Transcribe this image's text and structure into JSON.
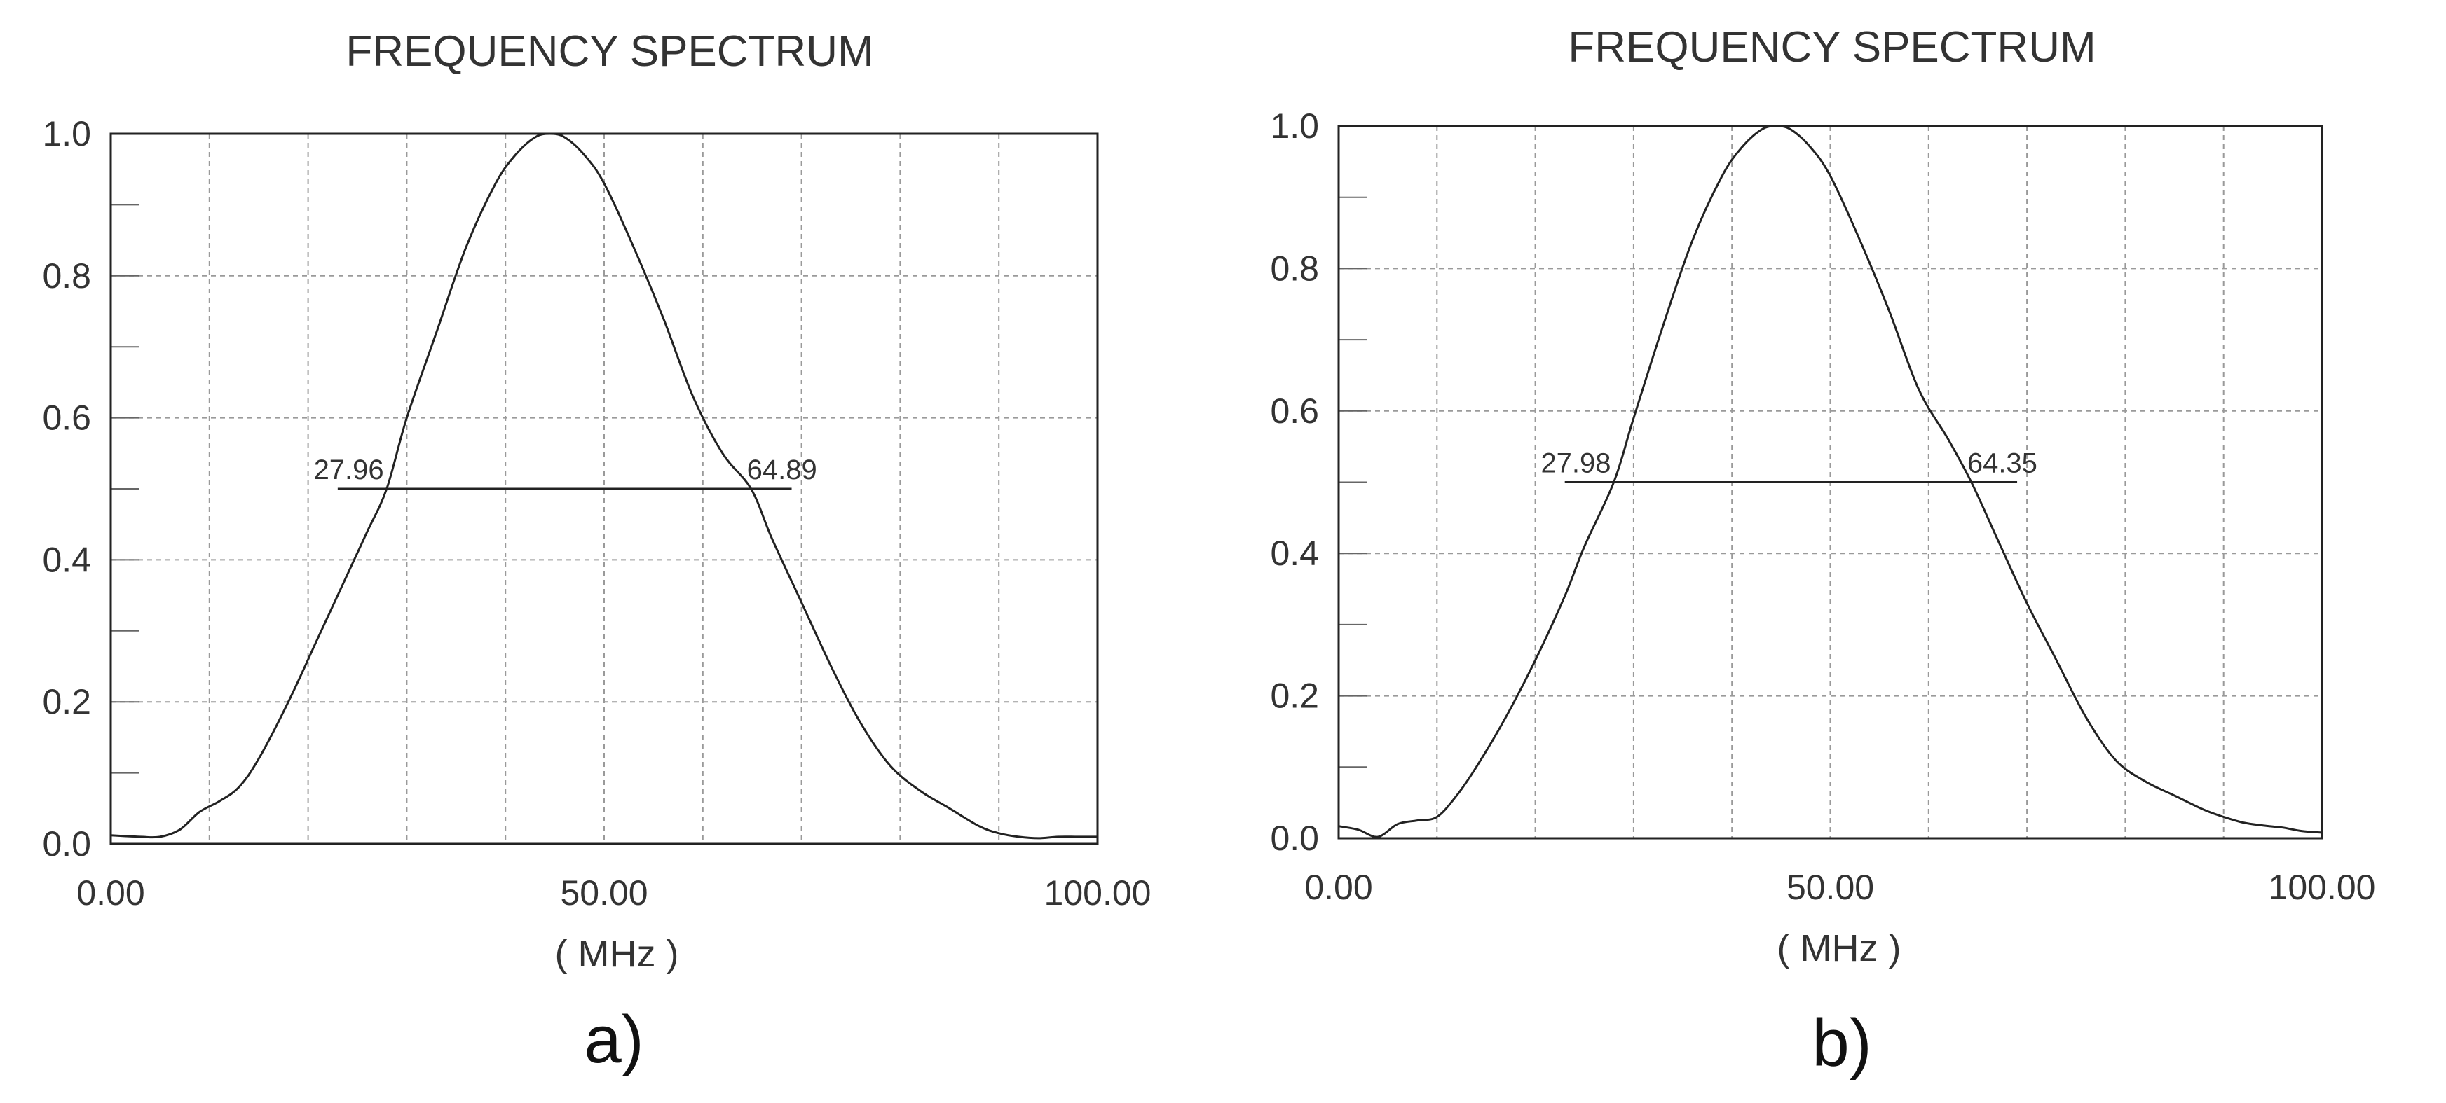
{
  "chart_data": [
    {
      "type": "line",
      "title": "FREQUENCY SPECTRUM",
      "xlabel": "( MHz )",
      "ylabel": "",
      "xlim": [
        0,
        100
      ],
      "ylim": [
        0,
        1
      ],
      "x_ticks": [
        "0.00",
        "50.00",
        "100.00"
      ],
      "y_ticks": [
        "0.0",
        "0.2",
        "0.4",
        "0.6",
        "0.8",
        "1.0"
      ],
      "grid": true,
      "panel_label": "a)",
      "series": [
        {
          "x": [
            0,
            3,
            5,
            7,
            9,
            11,
            13,
            15,
            18,
            21,
            24,
            26,
            27.96,
            30,
            33,
            36,
            39,
            41,
            43,
            44.5,
            46,
            48,
            50,
            53,
            56,
            59,
            62,
            64.89,
            67,
            70,
            73,
            76,
            79,
            82,
            85,
            88,
            90,
            92,
            94,
            96,
            98,
            100
          ],
          "values": [
            0.012,
            0.01,
            0.01,
            0.02,
            0.045,
            0.06,
            0.08,
            0.12,
            0.2,
            0.29,
            0.38,
            0.44,
            0.5,
            0.6,
            0.72,
            0.84,
            0.93,
            0.97,
            0.995,
            1.0,
            0.995,
            0.97,
            0.93,
            0.84,
            0.74,
            0.63,
            0.55,
            0.5,
            0.43,
            0.34,
            0.25,
            0.17,
            0.11,
            0.075,
            0.05,
            0.025,
            0.015,
            0.01,
            0.008,
            0.01,
            0.01,
            0.01
          ]
        }
      ],
      "annotations": {
        "level": 0.5,
        "span": [
          23,
          69
        ],
        "left_label": "27.96",
        "left_value": 27.96,
        "right_label": "64.89",
        "right_value": 64.89
      }
    },
    {
      "type": "line",
      "title": "FREQUENCY SPECTRUM",
      "xlabel": "( MHz )",
      "ylabel": "",
      "xlim": [
        0,
        100
      ],
      "ylim": [
        0,
        1
      ],
      "x_ticks": [
        "0.00",
        "50.00",
        "100.00"
      ],
      "y_ticks": [
        "0.0",
        "0.2",
        "0.4",
        "0.6",
        "0.8",
        "1.0"
      ],
      "grid": true,
      "panel_label": "b)",
      "series": [
        {
          "x": [
            0,
            2,
            4,
            6,
            8,
            10,
            12,
            14,
            17,
            20,
            23,
            25,
            27.98,
            30,
            33,
            36,
            39,
            41,
            43,
            44.5,
            46,
            48,
            50,
            53,
            56,
            59,
            62,
            64.35,
            67,
            70,
            73,
            76,
            79,
            82,
            85,
            88,
            90,
            92,
            94,
            96,
            98,
            100
          ],
          "values": [
            0.017,
            0.012,
            0.002,
            0.02,
            0.025,
            0.03,
            0.06,
            0.1,
            0.17,
            0.25,
            0.34,
            0.41,
            0.5,
            0.59,
            0.72,
            0.84,
            0.93,
            0.97,
            0.995,
            1.0,
            0.995,
            0.97,
            0.93,
            0.84,
            0.74,
            0.63,
            0.56,
            0.5,
            0.42,
            0.33,
            0.25,
            0.17,
            0.11,
            0.08,
            0.06,
            0.04,
            0.03,
            0.022,
            0.018,
            0.015,
            0.01,
            0.008
          ]
        }
      ],
      "annotations": {
        "level": 0.5,
        "span": [
          23,
          69
        ],
        "left_label": "27.98",
        "left_value": 27.98,
        "right_label": "64.35",
        "right_value": 64.35
      }
    }
  ]
}
